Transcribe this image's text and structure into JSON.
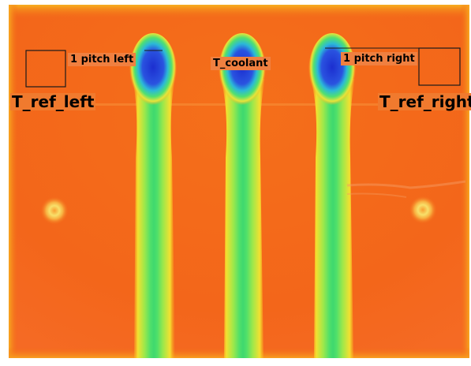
{
  "image": {
    "description_colors": {
      "background_orange": "#f46a16",
      "hot_edge_yellow": "#f7b21a",
      "cool_blue": "#2a3fd6",
      "mid_green": "#4fe06a",
      "label_background": "#f08040"
    },
    "labels": {
      "pitch_left": "1 pitch left",
      "coolant": "T_coolant",
      "pitch_right": "1 pitch right",
      "ref_left": "T_ref_left",
      "ref_right": "T_ref_right"
    }
  }
}
